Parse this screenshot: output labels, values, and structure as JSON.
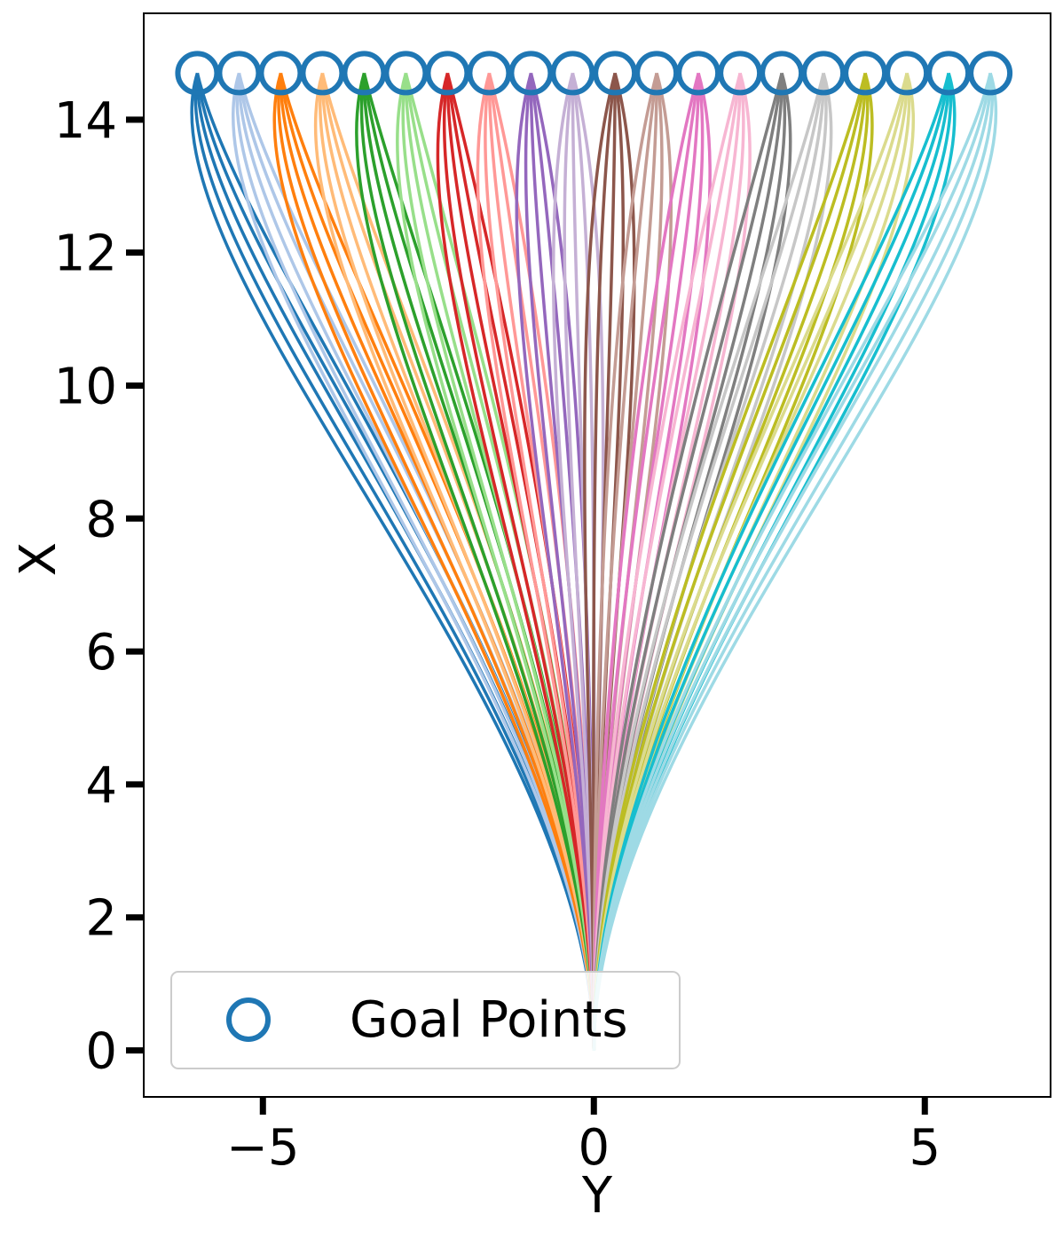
{
  "chart_data": {
    "type": "line",
    "title": "",
    "xlabel": "Y",
    "ylabel": "X",
    "xlim": [
      -6.8,
      6.9
    ],
    "ylim": [
      -0.7,
      15.6
    ],
    "xticks": [
      -5,
      0,
      5
    ],
    "xtick_labels": [
      "−5",
      "0",
      "5"
    ],
    "yticks": [
      0,
      2,
      4,
      6,
      8,
      10,
      12,
      14
    ],
    "ytick_labels": [
      "0",
      "2",
      "4",
      "6",
      "8",
      "10",
      "12",
      "14"
    ],
    "grid": false,
    "legend": {
      "position": "lower-left",
      "entries": [
        "Goal Points"
      ]
    },
    "start_point": [
      0,
      0
    ],
    "goal_points": {
      "name": "Goal Points",
      "color": "#1f77b4",
      "x": [
        -5.99,
        -5.36,
        -4.73,
        -4.1,
        -3.47,
        -2.84,
        -2.21,
        -1.58,
        -0.95,
        -0.32,
        0.32,
        0.95,
        1.58,
        2.21,
        2.84,
        3.47,
        4.1,
        4.73,
        5.36,
        5.99
      ],
      "y": [
        14.7,
        14.7,
        14.7,
        14.7,
        14.7,
        14.7,
        14.7,
        14.7,
        14.7,
        14.7,
        14.7,
        14.7,
        14.7,
        14.7,
        14.7,
        14.7,
        14.7,
        14.7,
        14.7,
        14.7
      ]
    },
    "trajectory_colors": [
      "#1f77b4",
      "#aec7e8",
      "#ff7f0e",
      "#ffbb78",
      "#2ca02c",
      "#98df8a",
      "#d62728",
      "#ff9896",
      "#9467bd",
      "#c5b0d5",
      "#8c564b",
      "#c49c94",
      "#e377c2",
      "#f7b6d2",
      "#7f7f7f",
      "#c7c7c7",
      "#bcbd22",
      "#dbdb8d",
      "#17becf",
      "#9edae5"
    ],
    "trajectory_bulge": [
      -0.2,
      -0.1,
      0,
      0.1,
      0.2
    ]
  }
}
